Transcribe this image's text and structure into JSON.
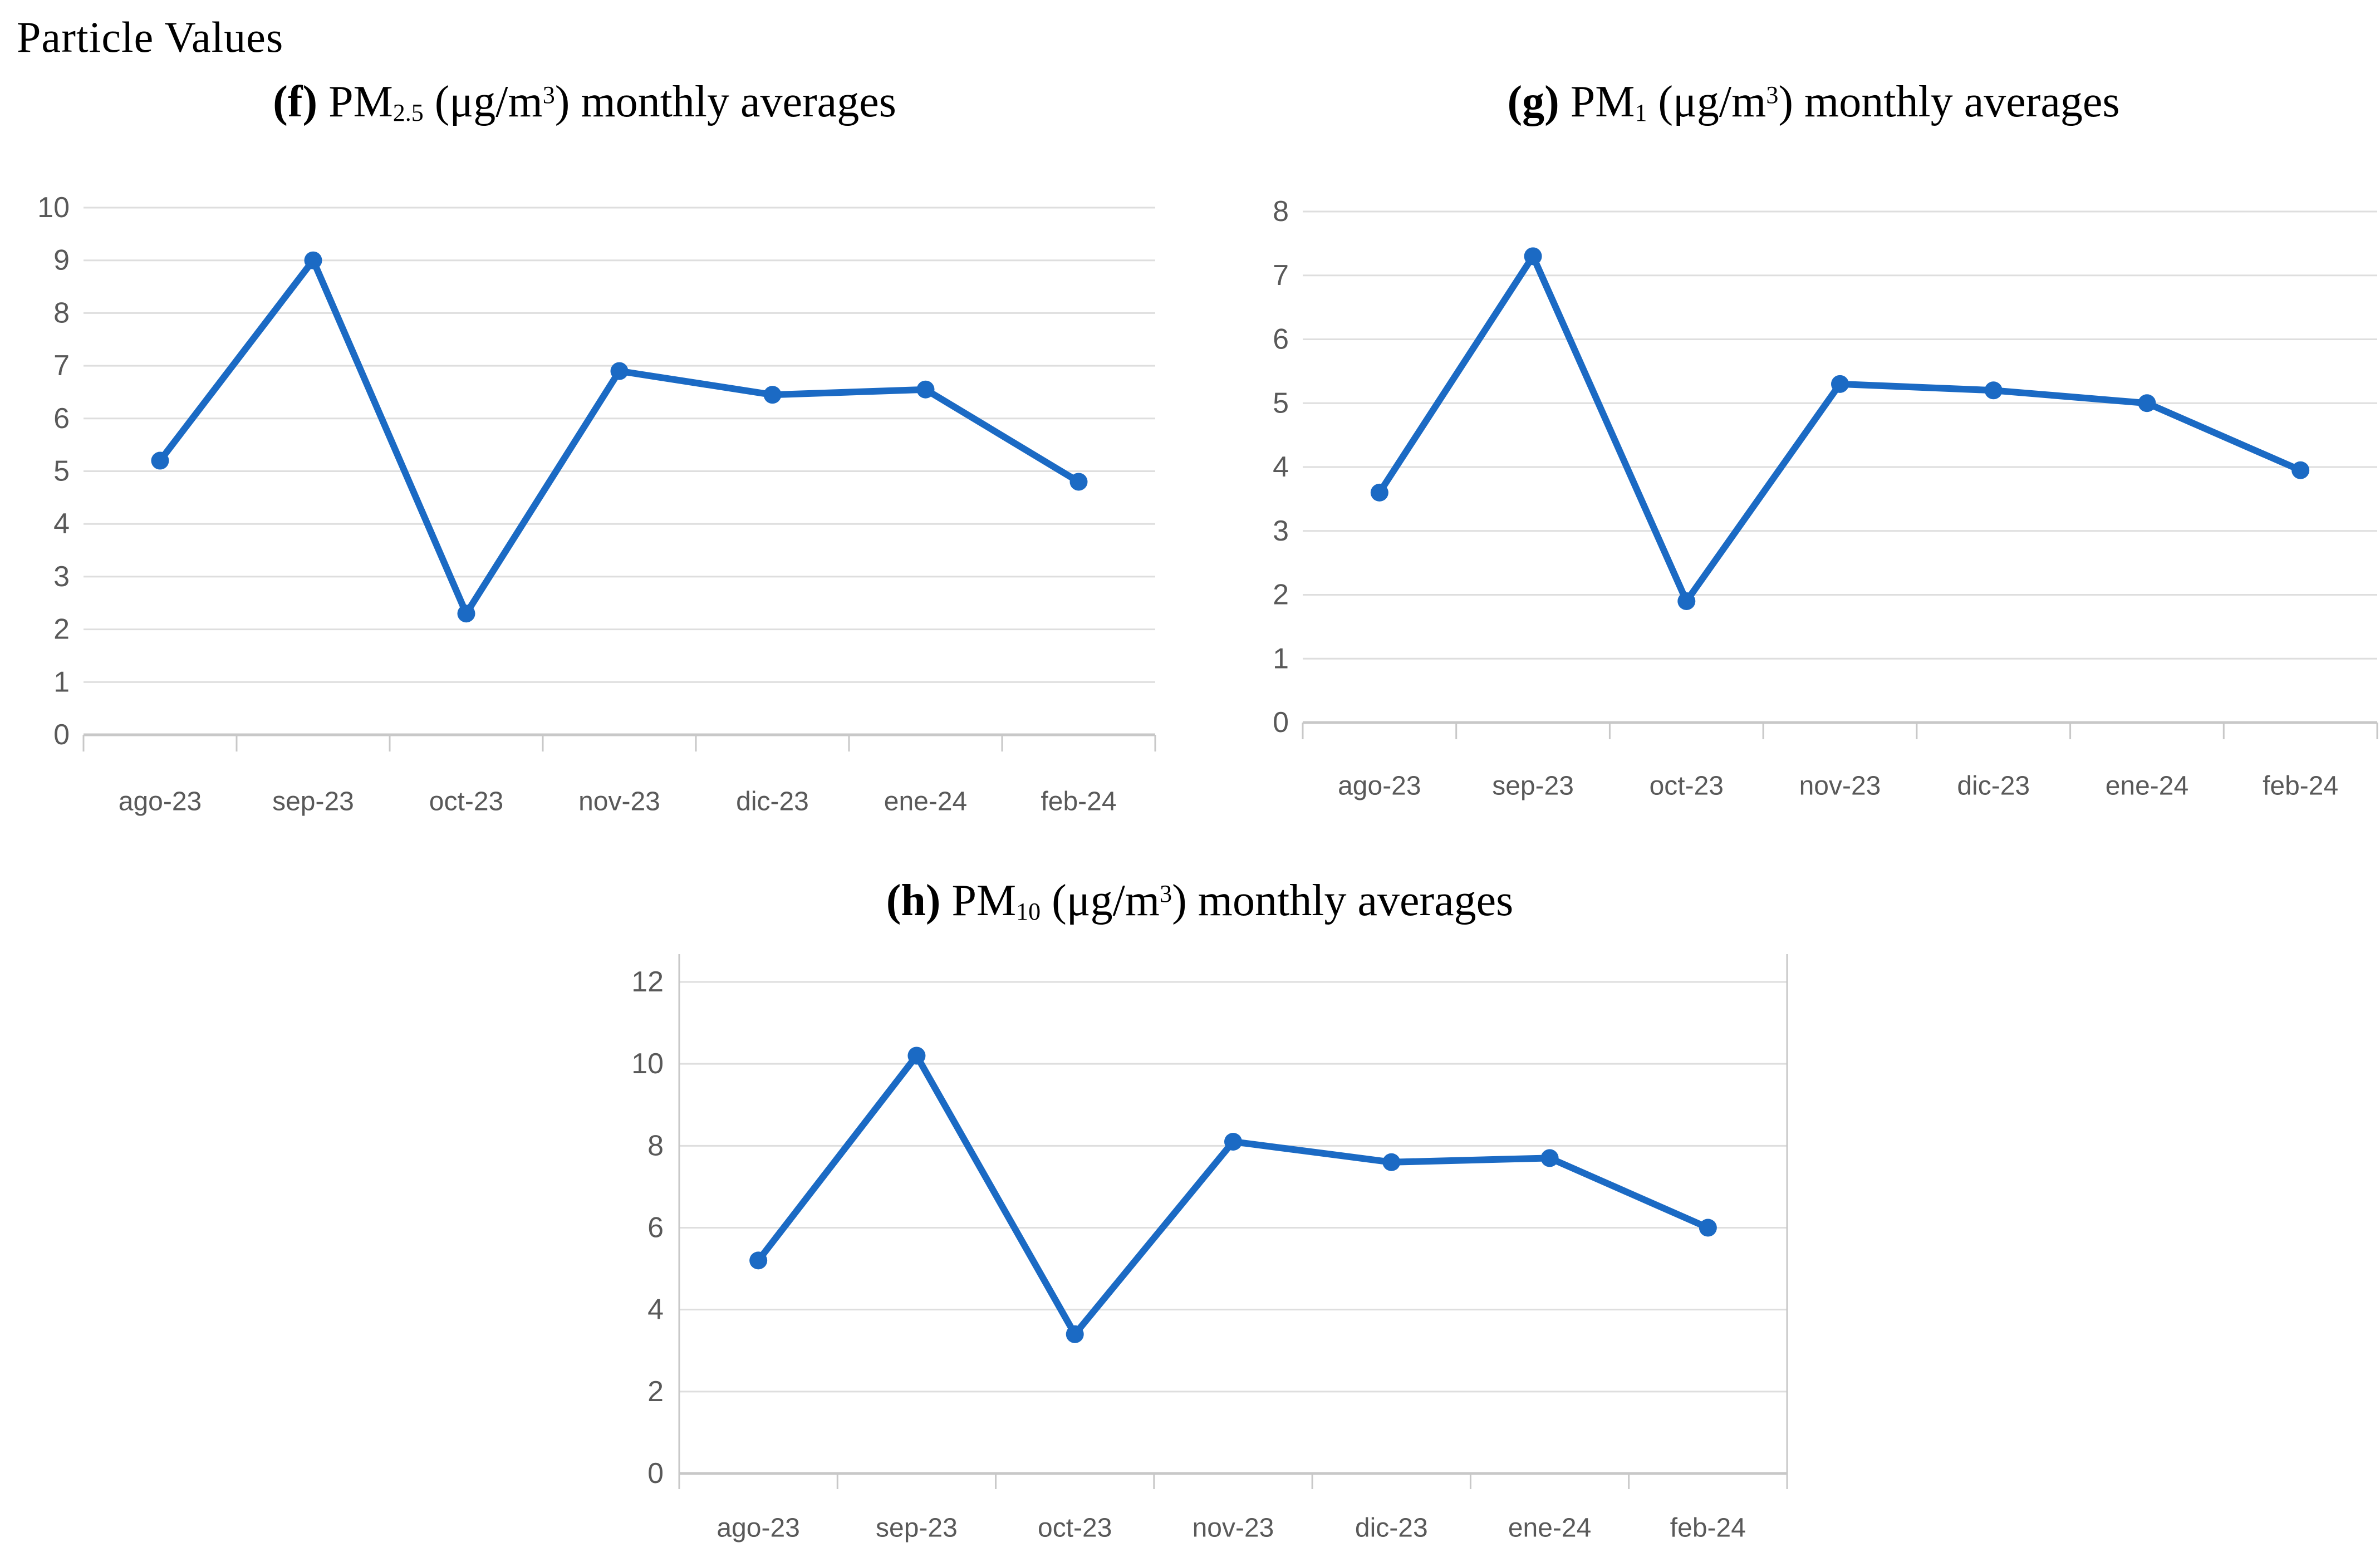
{
  "page": {
    "title": "Particle Values"
  },
  "colors": {
    "line": "#1b6ac4",
    "marker": "#1b6ac4",
    "grid": "#dedede",
    "axis": "#c8c8c8",
    "tick_label": "#595959",
    "title": "#000000"
  },
  "chart_data": [
    {
      "id": "f",
      "type": "line",
      "title_plain": "(f) PM2.5 (μg/m3) monthly averages",
      "title_parts": {
        "index": "(f)",
        "pm": " PM",
        "pm_sub": "2.5",
        "unit_open": " (μg/m",
        "unit_sup": "3",
        "suffix": ") monthly averages"
      },
      "categories": [
        "ago-23",
        "sep-23",
        "oct-23",
        "nov-23",
        "dic-23",
        "ene-24",
        "feb-24"
      ],
      "values": [
        5.2,
        9.0,
        2.3,
        6.9,
        6.45,
        6.55,
        4.8
      ],
      "ylim": [
        0,
        10
      ],
      "ytick_step": 1,
      "grid": true,
      "legend": null
    },
    {
      "id": "g",
      "type": "line",
      "title_plain": "(g) PM1 (μg/m3) monthly averages",
      "title_parts": {
        "index": "(g)",
        "pm": " PM",
        "pm_sub": "1",
        "unit_open": " (μg/m",
        "unit_sup": "3",
        "suffix": ") monthly averages"
      },
      "categories": [
        "ago-23",
        "sep-23",
        "oct-23",
        "nov-23",
        "dic-23",
        "ene-24",
        "feb-24"
      ],
      "values": [
        3.6,
        7.3,
        1.9,
        5.3,
        5.2,
        5.0,
        3.95
      ],
      "ylim": [
        0,
        8
      ],
      "ytick_step": 1,
      "grid": true,
      "legend": null
    },
    {
      "id": "h",
      "type": "line",
      "title_plain": "(h) PM10 (μg/m3) monthly averages",
      "title_parts": {
        "index": "(h)",
        "pm": " PM",
        "pm_sub": "10",
        "unit_open": " (μg/m",
        "unit_sup": "3",
        "suffix": ") monthly averages"
      },
      "categories": [
        "ago-23",
        "sep-23",
        "oct-23",
        "nov-23",
        "dic-23",
        "ene-24",
        "feb-24"
      ],
      "values": [
        5.2,
        10.2,
        3.4,
        8.1,
        7.6,
        7.7,
        6.0
      ],
      "ylim": [
        0,
        12
      ],
      "ytick_step": 2,
      "grid": true,
      "legend": null
    }
  ]
}
